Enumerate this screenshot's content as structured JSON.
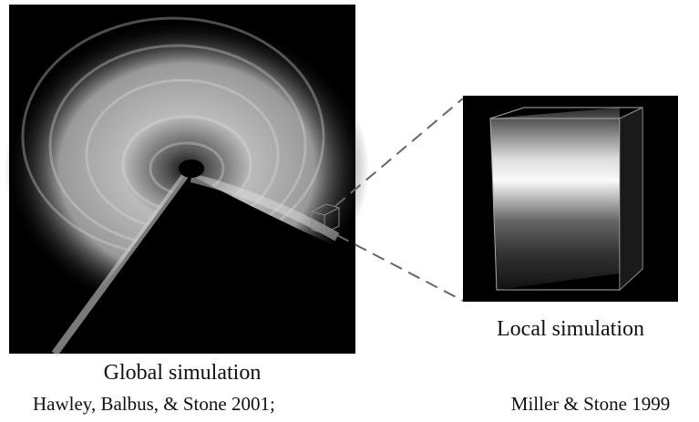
{
  "figure": {
    "global": {
      "caption": "Global simulation",
      "citation": "Hawley, Balbus, & Stone 2001;"
    },
    "local": {
      "caption": "Local simulation",
      "citation": "Miller & Stone 1999"
    }
  }
}
